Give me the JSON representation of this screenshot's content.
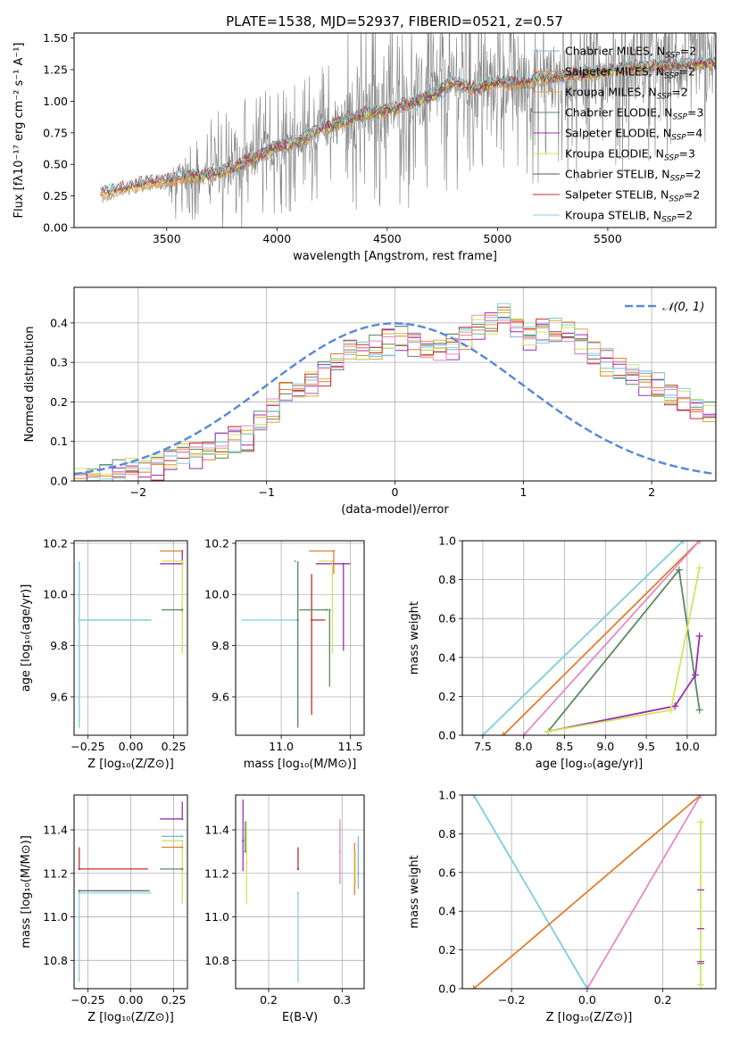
{
  "figure": {
    "title": "PLATE=1538, MJD=52937, FIBERID=0521, z=0.57"
  },
  "model_colors": {
    "Chabrier MILES": "#7fb0e0",
    "Salpeter MILES": "#e07f2c",
    "Kroupa MILES": "#e6a640",
    "Chabrier ELODIE": "#5b8a60",
    "Salpeter ELODIE": "#9b2fb0",
    "Kroupa ELODIE": "#cfe65a",
    "Chabrier STELIB": "#5a5a5a",
    "Salpeter STELIB": "#c0302c",
    "Kroupa STELIB": "#86d3de",
    "observed": "#808080",
    "normal_curve": "#5b8bd6",
    "pink_model": "#e58ac6"
  },
  "chart_data": [
    {
      "id": "spectrum",
      "type": "line",
      "xlabel": "wavelength [Angstrom, rest frame]",
      "ylabel": "Flux [fλ10⁻¹⁷ erg cm⁻² s⁻¹ A⁻¹]",
      "xlim": [
        3080,
        5990
      ],
      "ylim": [
        0,
        1.54
      ],
      "xticks": [
        "3500",
        "4000",
        "4500",
        "5000",
        "5500"
      ],
      "xtick_values": [
        3500,
        4000,
        4500,
        5000,
        5500
      ],
      "yticks": [
        "0.00",
        "0.25",
        "0.50",
        "0.75",
        "1.00",
        "1.25",
        "1.50"
      ],
      "ytick_values": [
        0,
        0.25,
        0.5,
        0.75,
        1.0,
        1.25,
        1.5
      ],
      "grid": false,
      "legend_position": "right",
      "legend": [
        {
          "name": "Chabrier MILES, N",
          "sub": "SSP",
          "tail": "=2"
        },
        {
          "name": "Salpeter MILES, N",
          "sub": "SSP",
          "tail": "=2"
        },
        {
          "name": "Kroupa MILES, N",
          "sub": "SSP",
          "tail": "=2"
        },
        {
          "name": "Chabrier ELODIE, N",
          "sub": "SSP",
          "tail": "=3"
        },
        {
          "name": "Salpeter ELODIE, N",
          "sub": "SSP",
          "tail": "=4"
        },
        {
          "name": "Kroupa ELODIE, N",
          "sub": "SSP",
          "tail": "=3"
        },
        {
          "name": "Chabrier STELIB, N",
          "sub": "SSP",
          "tail": "=2"
        },
        {
          "name": "Salpeter STELIB, N",
          "sub": "SSP",
          "tail": "=2"
        },
        {
          "name": "Kroupa STELIB, N",
          "sub": "SSP",
          "tail": "=2"
        }
      ],
      "model_trend": [
        [
          3200,
          0.26
        ],
        [
          3300,
          0.31
        ],
        [
          3400,
          0.35
        ],
        [
          3500,
          0.37
        ],
        [
          3600,
          0.4
        ],
        [
          3700,
          0.42
        ],
        [
          3800,
          0.47
        ],
        [
          3900,
          0.55
        ],
        [
          4000,
          0.64
        ],
        [
          4100,
          0.68
        ],
        [
          4200,
          0.78
        ],
        [
          4300,
          0.84
        ],
        [
          4400,
          0.9
        ],
        [
          4500,
          0.93
        ],
        [
          4600,
          0.98
        ],
        [
          4700,
          1.04
        ],
        [
          4800,
          1.15
        ],
        [
          4900,
          1.1
        ],
        [
          5000,
          1.15
        ],
        [
          5100,
          1.14
        ],
        [
          5200,
          1.18
        ],
        [
          5300,
          1.2
        ],
        [
          5400,
          1.22
        ],
        [
          5500,
          1.24
        ],
        [
          5600,
          1.26
        ],
        [
          5700,
          1.27
        ],
        [
          5800,
          1.28
        ],
        [
          5900,
          1.3
        ]
      ]
    },
    {
      "id": "residuals",
      "type": "histogram",
      "xlabel": "(data-model)/error",
      "ylabel": "Normed distribution",
      "xlim": [
        -2.5,
        2.5
      ],
      "ylim": [
        0,
        0.49
      ],
      "xticks": [
        "−2",
        "−1",
        "0",
        "1",
        "2"
      ],
      "xtick_values": [
        -2,
        -1,
        0,
        1,
        2
      ],
      "yticks": [
        "0.0",
        "0.1",
        "0.2",
        "0.3",
        "0.4"
      ],
      "ytick_values": [
        0,
        0.1,
        0.2,
        0.3,
        0.4
      ],
      "grid": true,
      "legend_position": "top-right",
      "legend": "𝒩(0, 1)",
      "normal_curve": {
        "mean": 0,
        "sigma": 1
      },
      "bin_width": 0.1,
      "bin_start": -2.5,
      "base_heights": [
        0.012,
        0.014,
        0.018,
        0.02,
        0.025,
        0.028,
        0.032,
        0.045,
        0.06,
        0.065,
        0.078,
        0.09,
        0.105,
        0.11,
        0.15,
        0.18,
        0.215,
        0.23,
        0.245,
        0.27,
        0.3,
        0.33,
        0.32,
        0.335,
        0.35,
        0.365,
        0.34,
        0.33,
        0.325,
        0.34,
        0.365,
        0.39,
        0.4,
        0.42,
        0.39,
        0.36,
        0.38,
        0.385,
        0.37,
        0.35,
        0.33,
        0.3,
        0.28,
        0.26,
        0.25,
        0.24,
        0.22,
        0.2,
        0.185,
        0.17
      ]
    },
    {
      "id": "age-vs-Z",
      "type": "errorbar",
      "xlabel": "Z [log₁₀(Z/Z⊙)]",
      "ylabel": "age  [log₁₀(age/yr)]",
      "xlim": [
        -0.33,
        0.33
      ],
      "ylim": [
        9.45,
        10.21
      ],
      "xticks": [
        "−0.25",
        "0.00",
        "0.25"
      ],
      "xtick_values": [
        -0.25,
        0.0,
        0.25
      ],
      "yticks": [
        "9.6",
        "9.8",
        "10.0",
        "10.2"
      ],
      "ytick_values": [
        9.6,
        9.8,
        10.0,
        10.2
      ],
      "grid": true,
      "bars": [
        {
          "model": "Chabrier MILES",
          "x": -0.3,
          "y": 9.9,
          "xerr": [
            0.0,
            0.42
          ],
          "yerr": [
            0.42,
            0.23
          ]
        },
        {
          "model": "Kroupa STELIB",
          "x": -0.3,
          "y": 9.9,
          "xerr": [
            0.0,
            0.41
          ],
          "yerr": [
            0.42,
            0.23
          ]
        },
        {
          "model": "Salpeter MILES",
          "x": 0.3,
          "y": 10.17,
          "xerr": [
            0.13,
            0.0
          ],
          "yerr": [
            0.02,
            0.0
          ]
        },
        {
          "model": "Salpeter ELODIE",
          "x": 0.3,
          "y": 10.12,
          "xerr": [
            0.13,
            0.0
          ],
          "yerr": [
            0.0,
            0.05
          ]
        },
        {
          "model": "Kroupa ELODIE",
          "x": 0.3,
          "y": 10.13,
          "xerr": [
            0.12,
            0.0
          ],
          "yerr": [
            0.36,
            0.0
          ]
        },
        {
          "model": "Chabrier ELODIE",
          "x": 0.3,
          "y": 9.94,
          "xerr": [
            0.12,
            0.0
          ],
          "yerr": [
            0.0,
            0.0
          ]
        }
      ]
    },
    {
      "id": "age-vs-mass",
      "type": "errorbar",
      "xlabel": "mass [log₁₀(M/M⊙)]",
      "ylabel": "",
      "xlim": [
        10.67,
        11.6
      ],
      "ylim": [
        9.45,
        10.21
      ],
      "xticks": [
        "11.0",
        "11.5"
      ],
      "xtick_values": [
        11.0,
        11.5
      ],
      "yticks": [
        "9.6",
        "9.8",
        "10.0",
        "10.2"
      ],
      "ytick_values": [
        9.6,
        9.8,
        10.0,
        10.2
      ],
      "grid": true,
      "bars": [
        {
          "model": "Kroupa STELIB",
          "x": 11.12,
          "y": 9.9,
          "xerr": [
            0.41,
            0.0
          ],
          "yerr": [
            0.42,
            0.23
          ]
        },
        {
          "model": "Chabrier ELODIE",
          "x": 11.12,
          "y": 9.9,
          "xerr": [
            0.0,
            0.0
          ],
          "yerr": [
            0.42,
            0.23
          ]
        },
        {
          "model": "Salpeter STELIB",
          "x": 11.22,
          "y": 9.9,
          "xerr": [
            0.0,
            0.1
          ],
          "yerr": [
            0.37,
            0.18
          ]
        },
        {
          "model": "Salpeter MILES",
          "x": 11.38,
          "y": 10.17,
          "xerr": [
            0.18,
            0.0
          ],
          "yerr": [
            0.09,
            0.0
          ]
        },
        {
          "model": "Salpeter ELODIE",
          "x": 11.45,
          "y": 10.12,
          "xerr": [
            0.2,
            0.05
          ],
          "yerr": [
            0.34,
            0.0
          ]
        },
        {
          "model": "Kroupa ELODIE",
          "x": 11.37,
          "y": 10.13,
          "xerr": [
            0.1,
            0.0
          ],
          "yerr": [
            0.36,
            0.0
          ]
        },
        {
          "model": "Chabrier MILES",
          "x": 11.1,
          "y": 10.13,
          "xerr": [
            0.0,
            0.0
          ],
          "yerr": [
            0.0,
            0.0
          ]
        },
        {
          "model": "Chabrier ELODIE",
          "x": 11.33,
          "y": 9.94,
          "xerr": [
            0.2,
            0.0
          ],
          "yerr": [
            0.0,
            0.0
          ]
        },
        {
          "model": "Chabrier ELODIE",
          "x": 11.35,
          "y": 9.94,
          "xerr": [
            0.0,
            0.0
          ],
          "yerr": [
            0.3,
            0.0
          ]
        }
      ]
    },
    {
      "id": "weight-vs-age",
      "type": "line",
      "xlabel": "age  [log₁₀(age/yr)]",
      "ylabel": "mass weight",
      "xlim": [
        7.25,
        10.35
      ],
      "ylim": [
        0,
        1.0
      ],
      "xticks": [
        "7.5",
        "8.0",
        "8.5",
        "9.0",
        "9.5",
        "10.0"
      ],
      "xtick_values": [
        7.5,
        8.0,
        8.5,
        9.0,
        9.5,
        10.0
      ],
      "yticks": [
        "0.0",
        "0.2",
        "0.4",
        "0.6",
        "0.8",
        "1.0"
      ],
      "ytick_values": [
        0,
        0.2,
        0.4,
        0.6,
        0.8,
        1.0
      ],
      "grid": true,
      "series": [
        {
          "model": "Chabrier MILES",
          "x": [
            7.5,
            9.95
          ],
          "y": [
            0.0,
            1.0
          ]
        },
        {
          "model": "Kroupa STELIB",
          "x": [
            7.5,
            9.95
          ],
          "y": [
            0.0,
            1.0
          ]
        },
        {
          "model": "Salpeter MILES",
          "x": [
            7.75,
            10.15
          ],
          "y": [
            0.0,
            1.0
          ]
        },
        {
          "model": "pink",
          "x": [
            8.0,
            10.15
          ],
          "y": [
            0.0,
            1.0
          ]
        },
        {
          "model": "Chabrier ELODIE",
          "x": [
            8.3,
            9.9,
            10.15
          ],
          "y": [
            0.02,
            0.85,
            0.13
          ]
        },
        {
          "model": "Salpeter ELODIE",
          "x": [
            8.3,
            9.85,
            10.1,
            10.15
          ],
          "y": [
            0.02,
            0.15,
            0.31,
            0.51
          ]
        },
        {
          "model": "Kroupa ELODIE",
          "x": [
            8.3,
            9.8,
            10.15
          ],
          "y": [
            0.02,
            0.13,
            0.86
          ]
        }
      ]
    },
    {
      "id": "mass-vs-Z",
      "type": "errorbar",
      "xlabel": "Z [log₁₀(Z/Z⊙)]",
      "ylabel": "mass [log₁₀(M/M⊙)]",
      "xlim": [
        -0.33,
        0.33
      ],
      "ylim": [
        10.67,
        11.56
      ],
      "xticks": [
        "−0.25",
        "0.00",
        "0.25"
      ],
      "xtick_values": [
        -0.25,
        0.0,
        0.25
      ],
      "yticks": [
        "10.8",
        "11.0",
        "11.2",
        "11.4"
      ],
      "ytick_values": [
        10.8,
        11.0,
        11.2,
        11.4
      ],
      "grid": true,
      "bars": [
        {
          "model": "Kroupa STELIB",
          "x": -0.3,
          "y": 11.11,
          "xerr": [
            0.0,
            0.42
          ],
          "yerr": [
            0.41,
            0.0
          ]
        },
        {
          "model": "Chabrier STELIB",
          "x": -0.3,
          "y": 11.12,
          "xerr": [
            0.0,
            0.41
          ],
          "yerr": [
            0.0,
            0.0
          ]
        },
        {
          "model": "Salpeter STELIB",
          "x": -0.3,
          "y": 11.22,
          "xerr": [
            0.0,
            0.4
          ],
          "yerr": [
            0.0,
            0.1
          ]
        },
        {
          "model": "Salpeter ELODIE",
          "x": 0.3,
          "y": 11.45,
          "xerr": [
            0.13,
            0.0
          ],
          "yerr": [
            0.0,
            0.08
          ]
        },
        {
          "model": "Kroupa ELODIE",
          "x": 0.3,
          "y": 11.35,
          "xerr": [
            0.12,
            0.0
          ],
          "yerr": [
            0.29,
            0.0
          ]
        },
        {
          "model": "Chabrier MILES",
          "x": 0.3,
          "y": 11.37,
          "xerr": [
            0.12,
            0.0
          ],
          "yerr": [
            0.0,
            0.0
          ]
        },
        {
          "model": "Chabrier ELODIE",
          "x": 0.3,
          "y": 11.22,
          "xerr": [
            0.13,
            0.0
          ],
          "yerr": [
            0.0,
            0.0
          ]
        },
        {
          "model": "Salpeter MILES",
          "x": 0.3,
          "y": 11.32,
          "xerr": [
            0.12,
            0.0
          ],
          "yerr": [
            0.0,
            0.0
          ]
        }
      ]
    },
    {
      "id": "mass-vs-EBV",
      "type": "errorbar",
      "xlabel": "E(B-V)",
      "ylabel": "",
      "xlim": [
        0.155,
        0.33
      ],
      "ylim": [
        10.67,
        11.56
      ],
      "xticks": [
        "0.2",
        "0.3"
      ],
      "xtick_values": [
        0.2,
        0.3
      ],
      "yticks": [
        "10.8",
        "11.0",
        "11.2",
        "11.4"
      ],
      "ytick_values": [
        10.8,
        11.0,
        11.2,
        11.4
      ],
      "grid": true,
      "bars": [
        {
          "model": "Salpeter ELODIE",
          "x": 0.165,
          "y": 11.35,
          "xerr": [
            0,
            0
          ],
          "yerr": [
            0.14,
            0.19
          ]
        },
        {
          "model": "Kroupa ELODIE",
          "x": 0.17,
          "y": 11.25,
          "xerr": [
            0,
            0
          ],
          "yerr": [
            0.19,
            0.19
          ]
        },
        {
          "model": "Chabrier ELODIE",
          "x": 0.168,
          "y": 11.3,
          "xerr": [
            0,
            0
          ],
          "yerr": [
            0.0,
            0.14
          ]
        },
        {
          "model": "Kroupa STELIB",
          "x": 0.24,
          "y": 11.11,
          "xerr": [
            0,
            0
          ],
          "yerr": [
            0.41,
            0.0
          ]
        },
        {
          "model": "Salpeter STELIB",
          "x": 0.24,
          "y": 11.22,
          "xerr": [
            0,
            0
          ],
          "yerr": [
            0.0,
            0.1
          ]
        },
        {
          "model": "pink",
          "x": 0.297,
          "y": 11.3,
          "xerr": [
            0,
            0
          ],
          "yerr": [
            0.15,
            0.15
          ]
        },
        {
          "model": "Salpeter MILES",
          "x": 0.317,
          "y": 11.2,
          "xerr": [
            0,
            0
          ],
          "yerr": [
            0.1,
            0.14
          ]
        },
        {
          "model": "Chabrier MILES",
          "x": 0.322,
          "y": 11.2,
          "xerr": [
            0,
            0
          ],
          "yerr": [
            0.07,
            0.17
          ]
        },
        {
          "model": "Kroupa ELODIE",
          "x": 0.318,
          "y": 11.2,
          "xerr": [
            0,
            0
          ],
          "yerr": [
            0.05,
            0.1
          ]
        }
      ]
    },
    {
      "id": "weight-vs-Z",
      "type": "line",
      "xlabel": "Z [log₁₀(Z/Z⊙)]",
      "ylabel": "mass weight",
      "xlim": [
        -0.33,
        0.34
      ],
      "ylim": [
        0,
        1.0
      ],
      "xticks": [
        "−0.2",
        "0.0",
        "0.2"
      ],
      "xtick_values": [
        -0.2,
        0.0,
        0.2
      ],
      "yticks": [
        "0.0",
        "0.2",
        "0.4",
        "0.6",
        "0.8",
        "1.0"
      ],
      "ytick_values": [
        0,
        0.2,
        0.4,
        0.6,
        0.8,
        1.0
      ],
      "grid": true,
      "series": [
        {
          "model": "Chabrier MILES",
          "x": [
            -0.3,
            0.0
          ],
          "y": [
            1.0,
            0.0
          ]
        },
        {
          "model": "Kroupa STELIB",
          "x": [
            -0.3,
            0.0
          ],
          "y": [
            1.0,
            0.0
          ]
        },
        {
          "model": "Salpeter MILES",
          "x": [
            -0.3,
            0.3
          ],
          "y": [
            0.0,
            1.0
          ]
        },
        {
          "model": "pink",
          "x": [
            0.0,
            0.3
          ],
          "y": [
            0.0,
            1.0
          ]
        },
        {
          "model": "Kroupa ELODIE",
          "x": [
            0.3,
            0.3
          ],
          "y": [
            0.02,
            0.86
          ]
        }
      ]
    }
  ]
}
